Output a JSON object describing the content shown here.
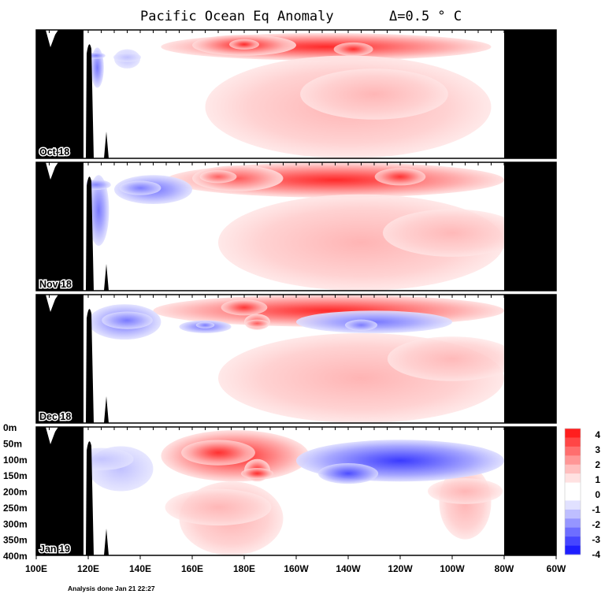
{
  "chart_data": {
    "type": "heatmap",
    "title": "Pacific Ocean Eq Anomaly",
    "contour_interval_label": "Δ=0.5 ° C",
    "x_ticks": [
      "100E",
      "120E",
      "140E",
      "160E",
      "180E",
      "160W",
      "140W",
      "120W",
      "100W",
      "80W",
      "60W"
    ],
    "x_tick_values_lon_e": [
      100,
      120,
      140,
      160,
      180,
      200,
      220,
      240,
      260,
      280,
      300
    ],
    "y_ticks": [
      "0m",
      "50m",
      "100m",
      "150m",
      "200m",
      "250m",
      "300m",
      "350m",
      "400m"
    ],
    "y_tick_values_m": [
      0,
      50,
      100,
      150,
      200,
      250,
      300,
      350,
      400
    ],
    "xlim_lon_e": [
      100,
      300
    ],
    "ylim_depth_m": [
      0,
      400
    ],
    "data_region_lon_e": [
      120,
      280
    ],
    "colorbar": {
      "ticks": [
        "4",
        "3",
        "2",
        "1",
        "0",
        "-1",
        "-2",
        "-3",
        "-4"
      ],
      "colors": [
        "#ff1e1e",
        "#ff4646",
        "#ff6e6e",
        "#ff9696",
        "#ffbebe",
        "#ffe1e1",
        "#ffffff",
        "#ffffff",
        "#e1e1ff",
        "#bebeff",
        "#9696ff",
        "#6e6eff",
        "#4646ff",
        "#1e1eff"
      ]
    },
    "panels": [
      {
        "label": "Oct 18",
        "anomalies": [
          {
            "sign": "pos",
            "lon": [
              148,
              275
            ],
            "depth": [
              10,
              95
            ],
            "peak": 3.0,
            "center": [
              222,
              60
            ]
          },
          {
            "sign": "pos",
            "lon": [
              160,
              200
            ],
            "depth": [
              15,
              80
            ],
            "peak": 2.5,
            "center": [
              180,
              45
            ]
          },
          {
            "sign": "pos",
            "lon": [
              165,
              275
            ],
            "depth": [
              80,
              400
            ],
            "peak": 0.8,
            "center": [
              230,
              200
            ]
          },
          {
            "sign": "neg",
            "lon": [
              121,
              126
            ],
            "depth": [
              55,
              180
            ],
            "peak": -1.5,
            "center": [
              123,
              80
            ]
          },
          {
            "sign": "neg",
            "lon": [
              130,
              140
            ],
            "depth": [
              60,
              120
            ],
            "peak": -1.0,
            "center": [
              135,
              85
            ]
          }
        ]
      },
      {
        "label": "Nov 18",
        "anomalies": [
          {
            "sign": "pos",
            "lon": [
              150,
              280
            ],
            "depth": [
              0,
              110
            ],
            "peak": 3.5,
            "center": [
              240,
              45
            ]
          },
          {
            "sign": "pos",
            "lon": [
              160,
              195
            ],
            "depth": [
              10,
              90
            ],
            "peak": 2.0,
            "center": [
              170,
              45
            ]
          },
          {
            "sign": "pos",
            "lon": [
              170,
              280
            ],
            "depth": [
              100,
              400
            ],
            "peak": 0.8,
            "center": [
              260,
              220
            ]
          },
          {
            "sign": "neg",
            "lon": [
              120,
              128
            ],
            "depth": [
              40,
              260
            ],
            "peak": -1.5,
            "center": [
              123,
              70
            ]
          },
          {
            "sign": "neg",
            "lon": [
              130,
              160
            ],
            "depth": [
              40,
              130
            ],
            "peak": -1.5,
            "center": [
              140,
              80
            ]
          }
        ]
      },
      {
        "label": "Dec 18",
        "anomalies": [
          {
            "sign": "pos",
            "lon": [
              145,
              280
            ],
            "depth": [
              0,
              100
            ],
            "peak": 2.5,
            "center": [
              180,
              40
            ]
          },
          {
            "sign": "pos",
            "lon": [
              180,
              190
            ],
            "depth": [
              60,
              110
            ],
            "peak": 2.0,
            "center": [
              185,
              90
            ]
          },
          {
            "sign": "pos",
            "lon": [
              170,
              280
            ],
            "depth": [
              120,
              400
            ],
            "peak": 0.6,
            "center": [
              260,
              200
            ]
          },
          {
            "sign": "neg",
            "lon": [
              120,
              148
            ],
            "depth": [
              30,
              140
            ],
            "peak": -1.5,
            "center": [
              135,
              80
            ]
          },
          {
            "sign": "neg",
            "lon": [
              155,
              175
            ],
            "depth": [
              80,
              120
            ],
            "peak": -1.5,
            "center": [
              165,
              95
            ]
          },
          {
            "sign": "neg",
            "lon": [
              200,
              260
            ],
            "depth": [
              50,
              120
            ],
            "peak": -1.5,
            "center": [
              225,
              95
            ]
          }
        ]
      },
      {
        "label": "Jan 19",
        "anomalies": [
          {
            "sign": "pos",
            "lon": [
              148,
              205
            ],
            "depth": [
              10,
              170
            ],
            "peak": 3.0,
            "center": [
              170,
              80
            ]
          },
          {
            "sign": "pos",
            "lon": [
              180,
              190
            ],
            "depth": [
              100,
              170
            ],
            "peak": 3.0,
            "center": [
              185,
              145
            ]
          },
          {
            "sign": "pos",
            "lon": [
              155,
              195
            ],
            "depth": [
              170,
              400
            ],
            "peak": 0.8,
            "center": [
              170,
              250
            ]
          },
          {
            "sign": "pos",
            "lon": [
              255,
              275
            ],
            "depth": [
              120,
              350
            ],
            "peak": 0.6,
            "center": [
              265,
              200
            ]
          },
          {
            "sign": "neg",
            "lon": [
              200,
              280
            ],
            "depth": [
              40,
              170
            ],
            "peak": -2.5,
            "center": [
              220,
              145
            ]
          },
          {
            "sign": "neg",
            "lon": [
              120,
              145
            ],
            "depth": [
              60,
              200
            ],
            "peak": -1.0,
            "center": [
              125,
              100
            ]
          }
        ]
      }
    ]
  },
  "footer": "Analysis done Jan 21 22:27"
}
